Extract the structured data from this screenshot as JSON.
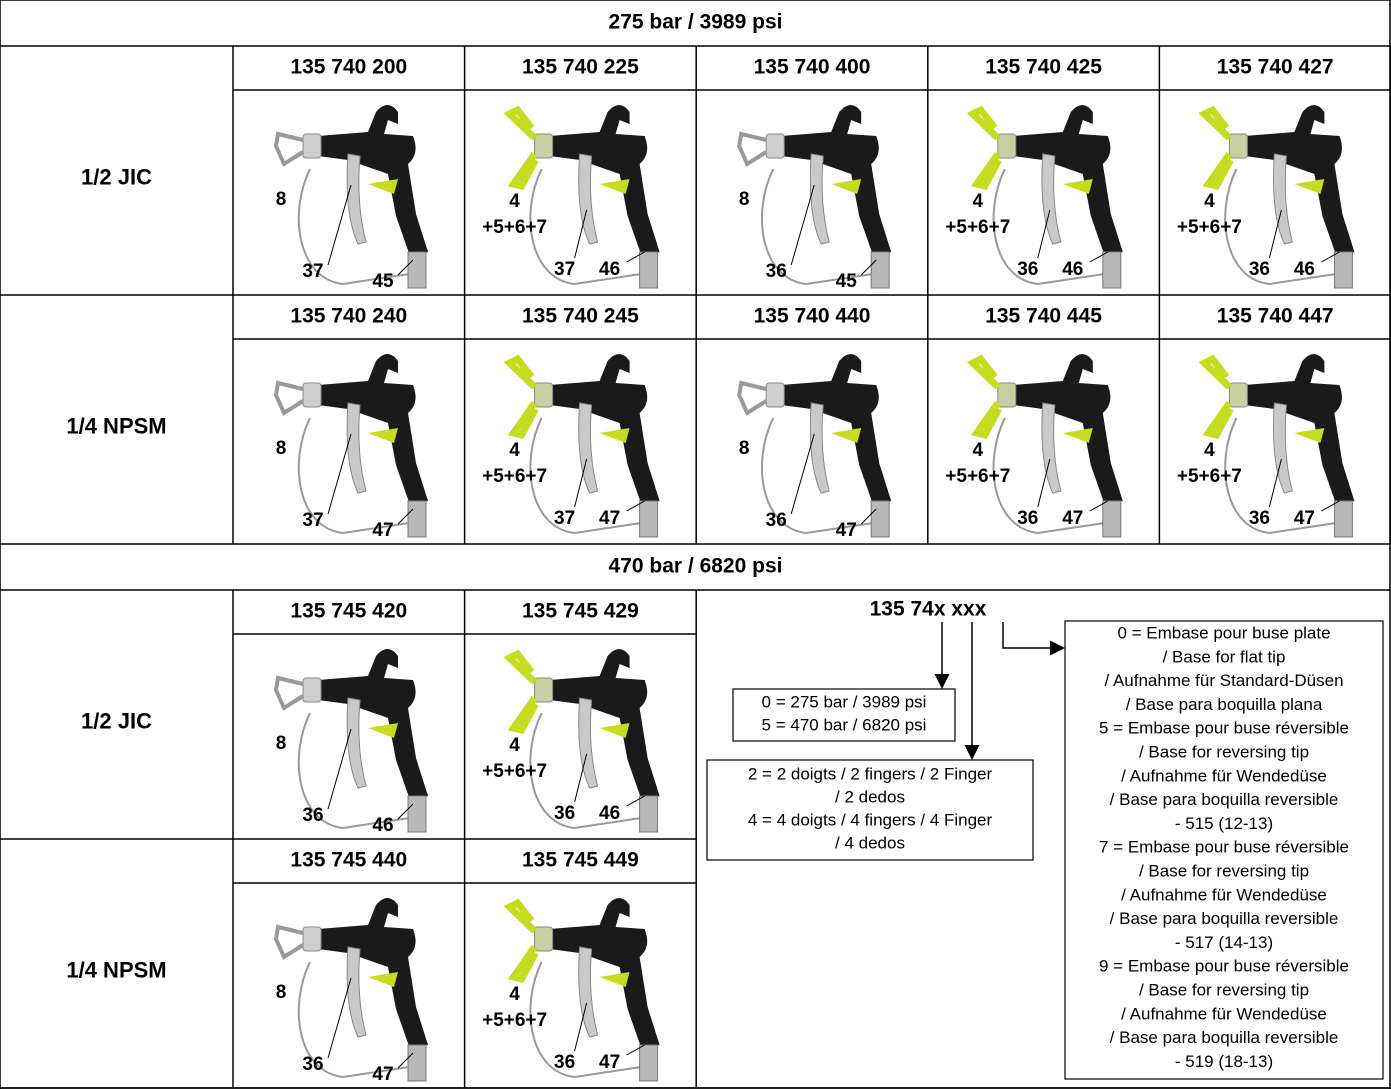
{
  "sections": [
    {
      "title": "275 bar / 3989 psi",
      "groups": [
        {
          "connection": "1/2 JIC",
          "items": [
            {
              "code": "135 740 200",
              "callouts": [
                "8",
                "37",
                "45"
              ]
            },
            {
              "code": "135 740 225",
              "callouts": [
                "4",
                "+5+6+7",
                "37",
                "46"
              ]
            },
            {
              "code": "135 740 400",
              "callouts": [
                "8",
                "36",
                "45"
              ]
            },
            {
              "code": "135 740 425",
              "callouts": [
                "4",
                "+5+6+7",
                "36",
                "46"
              ]
            },
            {
              "code": "135 740 427",
              "callouts": [
                "4",
                "+5+6+7",
                "36",
                "46"
              ]
            }
          ]
        },
        {
          "connection": "1/4 NPSM",
          "items": [
            {
              "code": "135 740 240",
              "callouts": [
                "8",
                "37",
                "47"
              ]
            },
            {
              "code": "135 740 245",
              "callouts": [
                "4",
                "+5+6+7",
                "37",
                "47"
              ]
            },
            {
              "code": "135 740 440",
              "callouts": [
                "8",
                "36",
                "47"
              ]
            },
            {
              "code": "135 740 445",
              "callouts": [
                "4",
                "+5+6+7",
                "36",
                "47"
              ]
            },
            {
              "code": "135 740 447",
              "callouts": [
                "4",
                "+5+6+7",
                "36",
                "47"
              ]
            }
          ]
        }
      ]
    },
    {
      "title": "470 bar / 6820 psi",
      "groups": [
        {
          "connection": "1/2 JIC",
          "items": [
            {
              "code": "135 745 420",
              "callouts": [
                "8",
                "36",
                "46"
              ]
            },
            {
              "code": "135 745 429",
              "callouts": [
                "4",
                "+5+6+7",
                "36",
                "46"
              ]
            }
          ]
        },
        {
          "connection": "1/4 NPSM",
          "items": [
            {
              "code": "135 745 440",
              "callouts": [
                "8",
                "36",
                "47"
              ]
            },
            {
              "code": "135 745 449",
              "callouts": [
                "4",
                "+5+6+7",
                "36",
                "47"
              ]
            }
          ]
        }
      ]
    }
  ],
  "legend": {
    "code": "135 74x xxx",
    "pressure": [
      "0 = 275 bar / 3989 psi",
      "5 = 470 bar / 6820 psi"
    ],
    "fingers": [
      "2 = 2 doigts / 2 fingers / 2 Finger",
      "/ 2 dedos",
      "4 = 4 doigts / 4 fingers / 4 Finger",
      "/ 4 dedos"
    ],
    "tips": [
      "0 = Embase pour buse plate",
      "/ Base for flat tip",
      "/ Aufnahme für Standard-Düsen",
      "/ Base para boquilla plana",
      "5 = Embase pour buse réversible",
      "/ Base for reversing tip",
      "/ Aufnahme für Wendedüse",
      "/ Base para boquilla reversible",
      "- 515 (12-13)",
      "7 = Embase pour buse réversible",
      "/ Base for reversing tip",
      "/ Aufnahme für Wendedüse",
      "/ Base para boquilla reversible",
      "- 517 (14-13)",
      "9 = Embase pour buse réversible",
      "/ Base for reversing tip",
      "/ Aufnahme für Wendedüse",
      "/ Base para boquilla reversible",
      "- 519 (18-13)"
    ]
  }
}
